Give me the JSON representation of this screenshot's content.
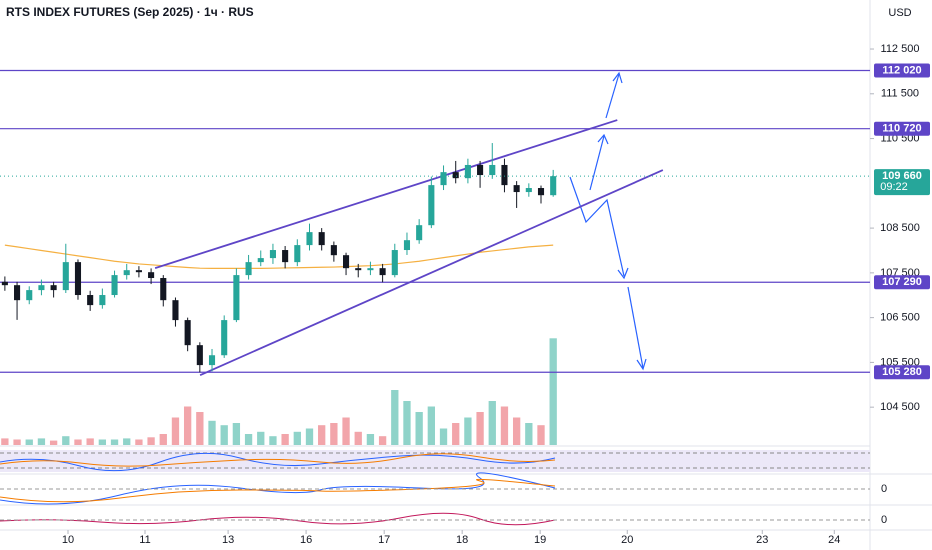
{
  "chart_data": {
    "type": "candlestick",
    "title": "RTS INDEX FUTURES (Sep 2025) · 1ч · RUS",
    "currency": "USD",
    "up_color": "#26a69a",
    "down_color": "#131722",
    "open": [
      107300,
      107225,
      106890,
      107115,
      107225,
      107115,
      107740,
      107005,
      106780,
      107005,
      107450,
      107560,
      107515,
      107385,
      106890,
      106445,
      105885,
      105440,
      105660,
      106445,
      107450,
      107740,
      107830,
      108010,
      107740,
      108120,
      108410,
      108120,
      107895,
      107605,
      107560,
      107605,
      107450,
      108010,
      108230,
      108565,
      109460,
      109750,
      109615,
      109910,
      109685,
      109910,
      109460,
      109305,
      109395,
      109235
    ],
    "high": [
      107420,
      107300,
      107200,
      107350,
      107300,
      108150,
      107800,
      107100,
      107150,
      107550,
      107700,
      107650,
      107600,
      107450,
      106950,
      106500,
      105950,
      105800,
      106550,
      107600,
      107900,
      108000,
      108150,
      108100,
      108250,
      108600,
      108500,
      108200,
      107950,
      107700,
      107750,
      107700,
      108150,
      108400,
      108700,
      109650,
      109900,
      110000,
      110050,
      110000,
      110400,
      110050,
      109550,
      109500,
      109450,
      109800
    ],
    "low": [
      107100,
      106450,
      106800,
      107000,
      106950,
      107050,
      106900,
      106650,
      106700,
      106950,
      107350,
      107400,
      107250,
      106750,
      106300,
      105750,
      105280,
      105300,
      105600,
      106400,
      107350,
      107650,
      107700,
      107600,
      107650,
      108000,
      108000,
      107750,
      107450,
      107400,
      107450,
      107290,
      107400,
      107900,
      108150,
      108500,
      109350,
      109500,
      109500,
      109400,
      109600,
      109300,
      108950,
      109200,
      109050,
      109200
    ],
    "close": [
      107225,
      106890,
      107115,
      107225,
      107115,
      107740,
      107005,
      106780,
      107005,
      107450,
      107560,
      107515,
      107385,
      106890,
      106445,
      105885,
      105440,
      105660,
      106445,
      107450,
      107740,
      107830,
      108010,
      107740,
      108120,
      108410,
      108120,
      107895,
      107605,
      107560,
      107605,
      107450,
      108010,
      108230,
      108565,
      109460,
      109750,
      109615,
      109910,
      109685,
      109910,
      109460,
      109305,
      109395,
      109235,
      109660
    ],
    "volume": [
      6,
      5,
      5,
      6,
      4,
      8,
      5,
      6,
      5,
      5,
      6,
      5,
      7,
      10,
      25,
      35,
      30,
      22,
      18,
      20,
      10,
      12,
      8,
      10,
      12,
      15,
      18,
      20,
      25,
      12,
      10,
      8,
      50,
      40,
      30,
      35,
      15,
      20,
      25,
      30,
      40,
      35,
      25,
      20,
      18,
      97
    ],
    "volume_lim": [
      0,
      100
    ],
    "volume_up_color": "#8fd3c9",
    "volume_down_color": "#f2a5aa",
    "moving_average": {
      "color": "#f5b041",
      "values": [
        108120,
        108080,
        108040,
        108000,
        107960,
        107920,
        107880,
        107840,
        107800,
        107760,
        107730,
        107700,
        107680,
        107660,
        107640,
        107620,
        107605,
        107600,
        107600,
        107600,
        107600,
        107600,
        107605,
        107610,
        107615,
        107620,
        107625,
        107630,
        107640,
        107650,
        107660,
        107680,
        107700,
        107730,
        107760,
        107800,
        107840,
        107880,
        107920,
        107960,
        107990,
        108020,
        108050,
        108080,
        108100,
        108120
      ]
    },
    "ylim": [
      103655,
      113595
    ],
    "yticks": [
      {
        "value": 112500,
        "label": "112 500"
      },
      {
        "value": 111500,
        "label": "111 500"
      },
      {
        "value": 110500,
        "label": "110 500"
      },
      {
        "value": 108500,
        "label": "108 500"
      },
      {
        "value": 107500,
        "label": "107 500"
      },
      {
        "value": 106500,
        "label": "106 500"
      },
      {
        "value": 105500,
        "label": "105 500"
      },
      {
        "value": 104500,
        "label": "104 500"
      }
    ],
    "xlim": [
      -0.4,
      71
    ],
    "xticks": [
      {
        "value": 5.18,
        "label": "10"
      },
      {
        "value": 11.5,
        "label": "11"
      },
      {
        "value": 18.32,
        "label": "13"
      },
      {
        "value": 24.72,
        "label": "16"
      },
      {
        "value": 31.13,
        "label": "17"
      },
      {
        "value": 37.53,
        "label": "18"
      },
      {
        "value": 43.93,
        "label": "19"
      },
      {
        "value": 51.08,
        "label": "20"
      },
      {
        "value": 62.16,
        "label": "23"
      },
      {
        "value": 68.07,
        "label": "24"
      }
    ],
    "level_color": "#5e45c7",
    "levels": [
      {
        "value": 112020,
        "label": "112 020"
      },
      {
        "value": 110720,
        "label": "110 720"
      },
      {
        "value": 107290,
        "label": "107 290"
      },
      {
        "value": 105280,
        "label": "105 280"
      }
    ],
    "last_price": {
      "value": 109660,
      "label": "109 660",
      "countdown": "09:22",
      "color": "#26a69a"
    },
    "trendlines": [
      {
        "x": [
          12.33,
          50.26
        ],
        "y": [
          107606,
          110913
        ]
      },
      {
        "x": [
          16.02,
          54.0
        ],
        "y": [
          105215,
          109796
        ]
      }
    ],
    "panes": [
      {
        "yticks": [
          0
        ]
      },
      {
        "yticks": [
          0
        ]
      }
    ]
  }
}
